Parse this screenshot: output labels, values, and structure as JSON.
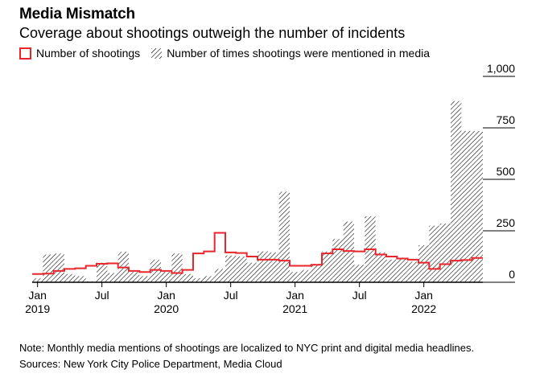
{
  "header": {
    "title": "Media Mismatch",
    "subtitle": "Coverage about shootings outweigh the number of incidents"
  },
  "legend": {
    "shootings_label": "Number of shootings",
    "mentions_label": "Number of times shootings were mentioned in media"
  },
  "footer": {
    "note": "Note: Monthly media mentions of shootings are localized to NYC print and digital media headlines.",
    "sources": "Sources: New York City Police Department, Media Cloud"
  },
  "colors": {
    "shootings_line": "#e8262b",
    "hatch": "#000000",
    "axis": "#000000"
  },
  "chart_data": {
    "type": "bar",
    "x_unit": "month",
    "categories": [
      "2019-01",
      "2019-02",
      "2019-03",
      "2019-04",
      "2019-05",
      "2019-06",
      "2019-07",
      "2019-08",
      "2019-09",
      "2019-10",
      "2019-11",
      "2019-12",
      "2020-01",
      "2020-02",
      "2020-03",
      "2020-04",
      "2020-05",
      "2020-06",
      "2020-07",
      "2020-08",
      "2020-09",
      "2020-10",
      "2020-11",
      "2020-12",
      "2021-01",
      "2021-02",
      "2021-03",
      "2021-04",
      "2021-05",
      "2021-06",
      "2021-07",
      "2021-08",
      "2021-09",
      "2021-10",
      "2021-11",
      "2021-12",
      "2022-01",
      "2022-02",
      "2022-03",
      "2022-04",
      "2022-05",
      "2022-06"
    ],
    "series": [
      {
        "name": "Number of times shootings were mentioned in media",
        "style": "hatched-bar",
        "values": [
          20,
          135,
          140,
          40,
          30,
          5,
          95,
          45,
          148,
          50,
          30,
          110,
          50,
          140,
          40,
          20,
          30,
          65,
          130,
          125,
          95,
          150,
          145,
          440,
          50,
          60,
          90,
          150,
          210,
          295,
          85,
          320,
          145,
          110,
          120,
          100,
          180,
          275,
          285,
          880,
          735,
          735
        ]
      },
      {
        "name": "Number of shootings",
        "style": "step-line",
        "values": [
          40,
          42,
          55,
          65,
          68,
          80,
          90,
          92,
          72,
          55,
          50,
          60,
          55,
          45,
          60,
          140,
          150,
          240,
          145,
          142,
          125,
          110,
          110,
          105,
          80,
          80,
          85,
          140,
          160,
          152,
          150,
          160,
          135,
          125,
          115,
          110,
          95,
          65,
          88,
          105,
          108,
          118
        ]
      }
    ],
    "x_tick_labels": [
      {
        "month": "2019-01",
        "line1": "Jan",
        "line2": "2019"
      },
      {
        "month": "2019-07",
        "line1": "Jul",
        "line2": ""
      },
      {
        "month": "2020-01",
        "line1": "Jan",
        "line2": "2020"
      },
      {
        "month": "2020-07",
        "line1": "Jul",
        "line2": ""
      },
      {
        "month": "2021-01",
        "line1": "Jan",
        "line2": "2021"
      },
      {
        "month": "2021-07",
        "line1": "Jul",
        "line2": ""
      },
      {
        "month": "2022-01",
        "line1": "Jan",
        "line2": "2022"
      }
    ],
    "y_ticks": [
      0,
      250,
      500,
      750,
      1000
    ],
    "y_tick_labels": [
      "0",
      "250",
      "500",
      "750",
      "1,000"
    ],
    "ylim": [
      0,
      1000
    ],
    "grid": false,
    "legend_position": "top-left"
  }
}
